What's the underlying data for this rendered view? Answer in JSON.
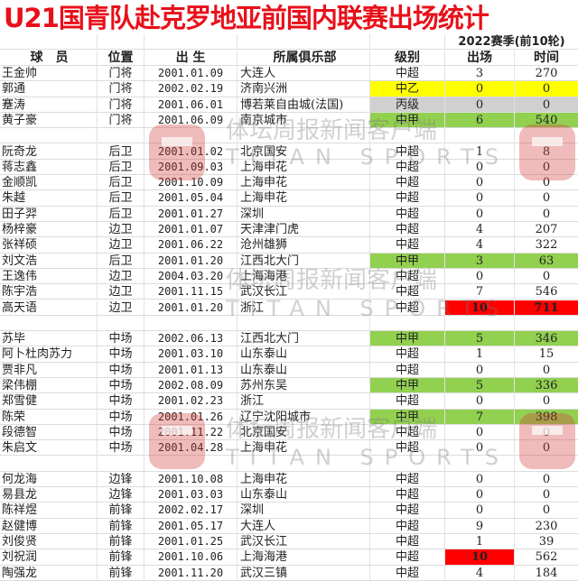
{
  "title": "U21国青队赴克罗地亚前国内联赛出场统计",
  "season_header": "2022赛季(前10轮)",
  "columns": [
    "球　员",
    "位置",
    "出 生",
    "所属俱乐部",
    "级别",
    "出场",
    "时间"
  ],
  "colors": {
    "title": "#e8101a",
    "yellow": "#ffff00",
    "green": "#92d050",
    "gray": "#d0d0d0",
    "red": "#ff0000"
  },
  "watermark": {
    "text": "体坛周报新闻客户端",
    "sub": "TITAN SPORTS"
  },
  "rows": [
    {
      "name": "王金帅",
      "pos": "门将",
      "birth": "2001.01.09",
      "club": "大连人",
      "level": "中超",
      "apps": "3",
      "mins": "270"
    },
    {
      "name": "郭通",
      "pos": "门将",
      "birth": "2002.02.19",
      "club": "济南兴洲",
      "level": "中乙",
      "apps": "0",
      "mins": "0",
      "hl": "yellow",
      "hl_span": "level-mins"
    },
    {
      "name": "蹇涛",
      "pos": "门将",
      "birth": "2001.06.01",
      "club": "博若莱自由城(法国)",
      "level": "丙级",
      "apps": "0",
      "mins": "0",
      "hl": "gray",
      "hl_span": "level-mins"
    },
    {
      "name": "黄子豪",
      "pos": "门将",
      "birth": "2001.06.09",
      "club": "南京城市",
      "level": "中甲",
      "apps": "6",
      "mins": "540",
      "hl": "green",
      "hl_span": "level-mins"
    },
    null,
    {
      "name": "阮奇龙",
      "pos": "后卫",
      "birth": "2001.01.02",
      "club": "北京国安",
      "level": "中超",
      "apps": "1",
      "mins": "8"
    },
    {
      "name": "蒋志鑫",
      "pos": "后卫",
      "birth": "2001.09.03",
      "club": "上海申花",
      "level": "中超",
      "apps": "0",
      "mins": "0"
    },
    {
      "name": "金顺凯",
      "pos": "后卫",
      "birth": "2001.10.09",
      "club": "上海申花",
      "level": "中超",
      "apps": "0",
      "mins": "0"
    },
    {
      "name": "朱越",
      "pos": "后卫",
      "birth": "2001.05.04",
      "club": "上海申花",
      "level": "中超",
      "apps": "0",
      "mins": "0"
    },
    {
      "name": "田子羿",
      "pos": "后卫",
      "birth": "2001.01.27",
      "club": "深圳",
      "level": "中超",
      "apps": "0",
      "mins": "0"
    },
    {
      "name": "杨梓豪",
      "pos": "边卫",
      "birth": "2001.01.07",
      "club": "天津津门虎",
      "level": "中超",
      "apps": "4",
      "mins": "207"
    },
    {
      "name": "张祥硕",
      "pos": "边卫",
      "birth": "2001.06.22",
      "club": "沧州雄狮",
      "level": "中超",
      "apps": "4",
      "mins": "322"
    },
    {
      "name": "刘文浩",
      "pos": "后卫",
      "birth": "2001.01.20",
      "club": "江西北大门",
      "level": "中甲",
      "apps": "3",
      "mins": "63",
      "hl": "green",
      "hl_span": "level-mins"
    },
    {
      "name": "王逸伟",
      "pos": "边卫",
      "birth": "2004.03.20",
      "club": "上海海港",
      "level": "中超",
      "apps": "0",
      "mins": "0"
    },
    {
      "name": "陈宇浩",
      "pos": "边卫",
      "birth": "2001.11.15",
      "club": "武汉长江",
      "level": "中超",
      "apps": "7",
      "mins": "546"
    },
    {
      "name": "高天语",
      "pos": "边卫",
      "birth": "2001.01.20",
      "club": "浙江",
      "level": "中超",
      "apps": "10",
      "mins": "711",
      "hl": "red",
      "hl_span": "apps-mins"
    },
    null,
    {
      "name": "苏毕",
      "pos": "中场",
      "birth": "2002.06.13",
      "club": "江西北大门",
      "level": "中甲",
      "apps": "5",
      "mins": "346",
      "hl": "green",
      "hl_span": "level-mins"
    },
    {
      "name": "阿卜杜肉苏力",
      "pos": "中场",
      "birth": "2001.03.10",
      "club": "山东泰山",
      "level": "中超",
      "apps": "1",
      "mins": "15"
    },
    {
      "name": "贾非凡",
      "pos": "中场",
      "birth": "2001.01.13",
      "club": "山东泰山",
      "level": "中超",
      "apps": "0",
      "mins": "0"
    },
    {
      "name": "梁伟棚",
      "pos": "中场",
      "birth": "2002.08.09",
      "club": "苏州东吴",
      "level": "中甲",
      "apps": "5",
      "mins": "336",
      "hl": "green",
      "hl_span": "level-mins"
    },
    {
      "name": "郑雪健",
      "pos": "中场",
      "birth": "2001.02.23",
      "club": "浙江",
      "level": "中超",
      "apps": "0",
      "mins": "0"
    },
    {
      "name": "陈荣",
      "pos": "中场",
      "birth": "2001.01.26",
      "club": "辽宁沈阳城市",
      "level": "中甲",
      "apps": "7",
      "mins": "398",
      "hl": "green",
      "hl_span": "level-mins"
    },
    {
      "name": "段德智",
      "pos": "中场",
      "birth": "2001.11.22",
      "club": "北京国安",
      "level": "中超",
      "apps": "0",
      "mins": "0"
    },
    {
      "name": "朱启文",
      "pos": "中场",
      "birth": "2001.04.28",
      "club": "上海申花",
      "level": "中超",
      "apps": "0",
      "mins": "0"
    },
    null,
    {
      "name": "何龙海",
      "pos": "边锋",
      "birth": "2001.10.08",
      "club": "上海申花",
      "level": "中超",
      "apps": "0",
      "mins": "0"
    },
    {
      "name": "易县龙",
      "pos": "边锋",
      "birth": "2001.03.03",
      "club": "山东泰山",
      "level": "中超",
      "apps": "0",
      "mins": "0"
    },
    {
      "name": "陈祥煜",
      "pos": "前锋",
      "birth": "2002.02.17",
      "club": "深圳",
      "level": "中超",
      "apps": "0",
      "mins": "0"
    },
    {
      "name": "赵健博",
      "pos": "前锋",
      "birth": "2001.05.17",
      "club": "大连人",
      "level": "中超",
      "apps": "9",
      "mins": "230"
    },
    {
      "name": "刘俊贤",
      "pos": "前锋",
      "birth": "2001.01.25",
      "club": "武汉长江",
      "level": "中超",
      "apps": "1",
      "mins": "39"
    },
    {
      "name": "刘祝润",
      "pos": "前锋",
      "birth": "2001.10.06",
      "club": "上海海港",
      "level": "中超",
      "apps": "10",
      "mins": "562",
      "hl": "red",
      "hl_span": "apps"
    },
    {
      "name": "陶强龙",
      "pos": "前锋",
      "birth": "2001.11.20",
      "club": "武汉三镇",
      "level": "中超",
      "apps": "4",
      "mins": "184"
    }
  ]
}
